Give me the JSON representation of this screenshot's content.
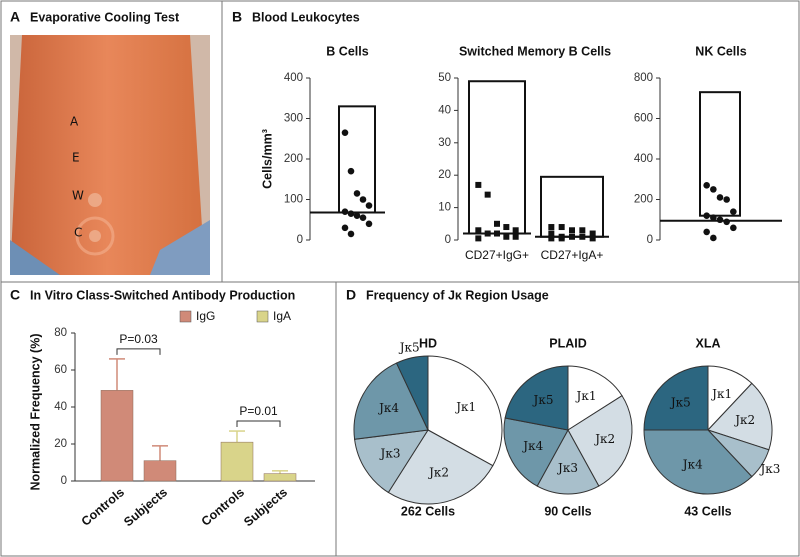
{
  "photo": {
    "letter": "A",
    "title": "Evaporative Cooling Test",
    "marks": [
      "A",
      "E",
      "W",
      "C"
    ]
  },
  "panels": [
    {
      "letter": "B",
      "title": "Blood Leukocytes"
    },
    {
      "letter": "C",
      "title": "In Vitro Class-Switched Antibody Production"
    },
    {
      "letter": "D",
      "title": "Frequency of Jκ Region Usage"
    }
  ],
  "chart_data": [
    {
      "type": "dot",
      "title": "B Cells",
      "y_label": "Cells/mm³",
      "ylim": [
        0,
        400
      ],
      "yticks": [
        0,
        100,
        200,
        300,
        400
      ],
      "series": [
        {
          "values": [
            265,
            170,
            115,
            100,
            85,
            70,
            65,
            60,
            55,
            40,
            30,
            15
          ],
          "range": [
            68,
            330
          ],
          "median": 68
        }
      ]
    },
    {
      "type": "dot",
      "title": "Switched Memory B Cells",
      "ylim": [
        0,
        50
      ],
      "yticks": [
        0,
        10,
        20,
        30,
        40,
        50
      ],
      "series": [
        {
          "name": "CD27+IgG+",
          "values": [
            17,
            14,
            5,
            4,
            3,
            3,
            2,
            2,
            1,
            1,
            0.5
          ],
          "range": [
            2,
            49
          ],
          "median": 2
        },
        {
          "name": "CD27+IgA+",
          "values": [
            4,
            4,
            3,
            3,
            2,
            2,
            1,
            1,
            1,
            0.5,
            0.5,
            0.5
          ],
          "range": [
            1,
            19.5
          ],
          "median": 1
        }
      ]
    },
    {
      "type": "dot",
      "title": "NK Cells",
      "ylim": [
        0,
        800
      ],
      "yticks": [
        0,
        200,
        400,
        600,
        800
      ],
      "series": [
        {
          "values": [
            270,
            250,
            210,
            200,
            140,
            120,
            110,
            100,
            90,
            60,
            40,
            10
          ],
          "range": [
            120,
            730
          ],
          "median": 95
        }
      ]
    },
    {
      "type": "bar",
      "y_label": "Normalized Frequency (%)",
      "ylim": [
        0,
        80
      ],
      "yticks": [
        0,
        20,
        40,
        60,
        80
      ],
      "categories": [
        "Controls",
        "Subjects"
      ],
      "series": [
        {
          "name": "IgG",
          "color": "#d08a78",
          "values": [
            49,
            11
          ],
          "errors": [
            17,
            8
          ]
        },
        {
          "name": "IgA",
          "color": "#d9d48a",
          "values": [
            21,
            4
          ],
          "errors": [
            6,
            1.5
          ]
        }
      ],
      "annotations": [
        "P=0.03",
        "P=0.01"
      ]
    },
    {
      "type": "pie",
      "title": "HD",
      "footer": "262 Cells",
      "categories": [
        "Jκ1",
        "Jκ2",
        "Jκ3",
        "Jκ4",
        "Jκ5"
      ],
      "values": [
        33,
        26,
        14,
        20,
        7
      ],
      "colors": [
        "#ffffff",
        "#d3dde4",
        "#a8bfcb",
        "#6e97a9",
        "#2c6680"
      ]
    },
    {
      "type": "pie",
      "title": "PLAID",
      "footer": "90 Cells",
      "categories": [
        "Jκ1",
        "Jκ2",
        "Jκ3",
        "Jκ4",
        "Jκ5"
      ],
      "values": [
        16,
        26,
        16,
        20,
        22
      ],
      "colors": [
        "#ffffff",
        "#d3dde4",
        "#a8bfcb",
        "#6e97a9",
        "#2c6680"
      ]
    },
    {
      "type": "pie",
      "title": "XLA",
      "footer": "43 Cells",
      "categories": [
        "Jκ1",
        "Jκ2",
        "Jκ3",
        "Jκ4",
        "Jκ5"
      ],
      "values": [
        12,
        18,
        8,
        37,
        25
      ],
      "colors": [
        "#ffffff",
        "#d3dde4",
        "#a8bfcb",
        "#6e97a9",
        "#2c6680"
      ]
    }
  ]
}
